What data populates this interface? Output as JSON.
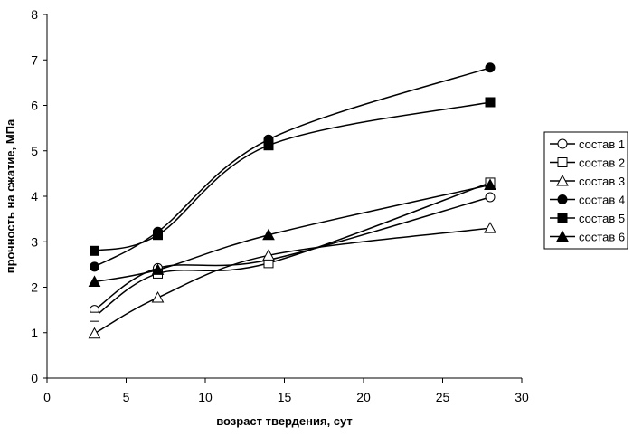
{
  "chart_data": {
    "type": "line",
    "title": "",
    "xlabel": "возраст твердения, сут",
    "ylabel": "прочность на сжатие, МПа",
    "xlim": [
      0,
      30
    ],
    "ylim": [
      0,
      8
    ],
    "x_ticks": [
      "0",
      "5",
      "10",
      "15",
      "20",
      "25",
      "30"
    ],
    "y_ticks": [
      "0",
      "1",
      "2",
      "3",
      "4",
      "5",
      "6",
      "7",
      "8"
    ],
    "grid": false,
    "legend_position": "right",
    "x": [
      3,
      7,
      14,
      28
    ],
    "series": [
      {
        "name": "состав 1",
        "marker": "circle-open",
        "values": [
          1.5,
          2.42,
          2.6,
          3.98
        ]
      },
      {
        "name": "состав 2",
        "marker": "square-open",
        "values": [
          1.35,
          2.3,
          2.53,
          4.3
        ]
      },
      {
        "name": "состав 3",
        "marker": "triangle-open",
        "values": [
          0.98,
          1.77,
          2.7,
          3.3
        ]
      },
      {
        "name": "состав 4",
        "marker": "circle-filled",
        "values": [
          2.45,
          3.22,
          5.25,
          6.83
        ]
      },
      {
        "name": "состав 5",
        "marker": "square-filled",
        "values": [
          2.8,
          3.15,
          5.12,
          6.07
        ]
      },
      {
        "name": "состав 6",
        "marker": "triangle-filled",
        "values": [
          2.12,
          2.38,
          3.15,
          4.25
        ]
      }
    ],
    "colors": {
      "line": "#000000",
      "axis": "#000000",
      "legend_border": "#000000"
    }
  }
}
